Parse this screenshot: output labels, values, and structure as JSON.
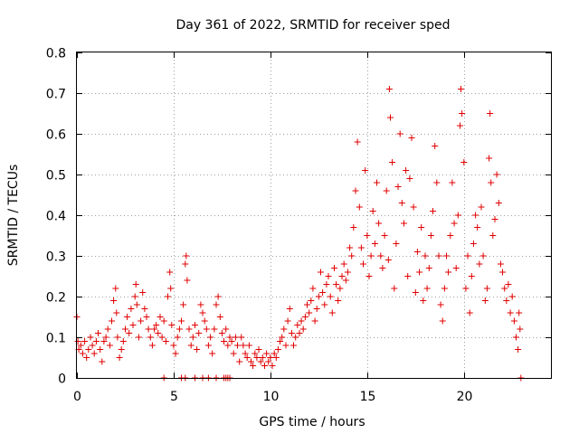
{
  "chart_data": {
    "type": "scatter",
    "title": "Day 361 of 2022, SRMTID for receiver sped",
    "xlabel": "GPS time / hours",
    "ylabel": "SRMTID / TECUs",
    "xlim": [
      0,
      24.5
    ],
    "ylim": [
      0,
      0.8
    ],
    "xticks": [
      0,
      5,
      10,
      15,
      20
    ],
    "yticks": [
      0,
      0.1,
      0.2,
      0.3,
      0.4,
      0.5,
      0.6,
      0.7,
      0.8
    ],
    "xtick_labels": [
      "0",
      "5",
      "10",
      "15",
      "20"
    ],
    "ytick_labels": [
      "0",
      "0.1",
      "0.2",
      "0.3",
      "0.4",
      "0.5",
      "0.6",
      "0.7",
      "0.8"
    ],
    "grid": true,
    "marker": "plus",
    "color": "#e00000",
    "series": [
      {
        "name": "SRMTID",
        "points": [
          [
            0.0,
            0.15
          ],
          [
            0.05,
            0.09
          ],
          [
            0.1,
            0.07
          ],
          [
            0.2,
            0.08
          ],
          [
            0.3,
            0.06
          ],
          [
            0.4,
            0.09
          ],
          [
            0.5,
            0.05
          ],
          [
            0.6,
            0.07
          ],
          [
            0.7,
            0.1
          ],
          [
            0.8,
            0.08
          ],
          [
            0.9,
            0.06
          ],
          [
            1.0,
            0.09
          ],
          [
            1.1,
            0.11
          ],
          [
            1.2,
            0.07
          ],
          [
            1.3,
            0.04
          ],
          [
            1.4,
            0.09
          ],
          [
            1.5,
            0.1
          ],
          [
            1.6,
            0.12
          ],
          [
            1.7,
            0.08
          ],
          [
            1.8,
            0.14
          ],
          [
            1.9,
            0.19
          ],
          [
            2.0,
            0.22
          ],
          [
            2.05,
            0.16
          ],
          [
            2.1,
            0.1
          ],
          [
            2.2,
            0.05
          ],
          [
            2.3,
            0.07
          ],
          [
            2.4,
            0.09
          ],
          [
            2.5,
            0.12
          ],
          [
            2.6,
            0.15
          ],
          [
            2.7,
            0.11
          ],
          [
            2.8,
            0.17
          ],
          [
            2.9,
            0.13
          ],
          [
            3.0,
            0.2
          ],
          [
            3.05,
            0.23
          ],
          [
            3.1,
            0.18
          ],
          [
            3.2,
            0.1
          ],
          [
            3.3,
            0.14
          ],
          [
            3.4,
            0.21
          ],
          [
            3.5,
            0.17
          ],
          [
            3.6,
            0.15
          ],
          [
            3.7,
            0.12
          ],
          [
            3.8,
            0.1
          ],
          [
            3.9,
            0.08
          ],
          [
            4.0,
            0.12
          ],
          [
            4.1,
            0.13
          ],
          [
            4.2,
            0.11
          ],
          [
            4.3,
            0.15
          ],
          [
            4.4,
            0.1
          ],
          [
            4.5,
            0.14
          ],
          [
            4.6,
            0.09
          ],
          [
            4.7,
            0.2
          ],
          [
            4.8,
            0.26
          ],
          [
            4.85,
            0.22
          ],
          [
            4.9,
            0.13
          ],
          [
            5.0,
            0.08
          ],
          [
            5.1,
            0.06
          ],
          [
            5.2,
            0.1
          ],
          [
            5.3,
            0.12
          ],
          [
            5.4,
            0.14
          ],
          [
            5.5,
            0.18
          ],
          [
            5.6,
            0.28
          ],
          [
            5.65,
            0.3
          ],
          [
            5.7,
            0.24
          ],
          [
            5.8,
            0.12
          ],
          [
            5.9,
            0.08
          ],
          [
            6.0,
            0.1
          ],
          [
            6.1,
            0.13
          ],
          [
            6.2,
            0.07
          ],
          [
            6.3,
            0.11
          ],
          [
            6.4,
            0.18
          ],
          [
            6.5,
            0.16
          ],
          [
            6.6,
            0.14
          ],
          [
            6.7,
            0.12
          ],
          [
            6.8,
            0.08
          ],
          [
            6.9,
            0.1
          ],
          [
            7.0,
            0.06
          ],
          [
            7.1,
            0.12
          ],
          [
            7.2,
            0.18
          ],
          [
            7.3,
            0.2
          ],
          [
            7.4,
            0.15
          ],
          [
            7.5,
            0.11
          ],
          [
            7.6,
            0.09
          ],
          [
            7.7,
            0.12
          ],
          [
            7.8,
            0.08
          ],
          [
            7.9,
            0.1
          ],
          [
            8.0,
            0.09
          ],
          [
            8.1,
            0.06
          ],
          [
            8.2,
            0.1
          ],
          [
            8.3,
            0.08
          ],
          [
            8.4,
            0.04
          ],
          [
            8.5,
            0.1
          ],
          [
            8.6,
            0.08
          ],
          [
            8.7,
            0.06
          ],
          [
            8.8,
            0.05
          ],
          [
            8.9,
            0.08
          ],
          [
            9.0,
            0.04
          ],
          [
            9.1,
            0.03
          ],
          [
            9.2,
            0.06
          ],
          [
            9.3,
            0.05
          ],
          [
            9.4,
            0.07
          ],
          [
            9.5,
            0.04
          ],
          [
            9.6,
            0.05
          ],
          [
            9.7,
            0.03
          ],
          [
            9.8,
            0.06
          ],
          [
            9.9,
            0.04
          ],
          [
            10.0,
            0.05
          ],
          [
            10.1,
            0.03
          ],
          [
            10.2,
            0.06
          ],
          [
            10.3,
            0.05
          ],
          [
            10.4,
            0.07
          ],
          [
            10.5,
            0.09
          ],
          [
            10.6,
            0.1
          ],
          [
            10.7,
            0.12
          ],
          [
            10.8,
            0.08
          ],
          [
            10.9,
            0.14
          ],
          [
            11.0,
            0.17
          ],
          [
            11.1,
            0.11
          ],
          [
            11.2,
            0.08
          ],
          [
            11.3,
            0.1
          ],
          [
            11.4,
            0.13
          ],
          [
            11.5,
            0.11
          ],
          [
            11.6,
            0.14
          ],
          [
            11.7,
            0.12
          ],
          [
            11.8,
            0.15
          ],
          [
            11.9,
            0.18
          ],
          [
            12.0,
            0.16
          ],
          [
            12.1,
            0.19
          ],
          [
            12.2,
            0.22
          ],
          [
            12.3,
            0.14
          ],
          [
            12.4,
            0.17
          ],
          [
            12.5,
            0.2
          ],
          [
            12.6,
            0.26
          ],
          [
            12.7,
            0.21
          ],
          [
            12.8,
            0.18
          ],
          [
            12.9,
            0.23
          ],
          [
            13.0,
            0.25
          ],
          [
            13.1,
            0.2
          ],
          [
            13.2,
            0.16
          ],
          [
            13.3,
            0.27
          ],
          [
            13.4,
            0.23
          ],
          [
            13.5,
            0.19
          ],
          [
            13.6,
            0.22
          ],
          [
            13.7,
            0.25
          ],
          [
            13.8,
            0.28
          ],
          [
            13.9,
            0.24
          ],
          [
            14.0,
            0.26
          ],
          [
            14.1,
            0.32
          ],
          [
            14.2,
            0.3
          ],
          [
            14.3,
            0.37
          ],
          [
            14.4,
            0.46
          ],
          [
            14.5,
            0.58
          ],
          [
            14.6,
            0.42
          ],
          [
            14.7,
            0.32
          ],
          [
            14.8,
            0.28
          ],
          [
            14.9,
            0.51
          ],
          [
            15.0,
            0.35
          ],
          [
            15.1,
            0.25
          ],
          [
            15.2,
            0.3
          ],
          [
            15.3,
            0.41
          ],
          [
            15.4,
            0.33
          ],
          [
            15.5,
            0.48
          ],
          [
            15.6,
            0.38
          ],
          [
            15.7,
            0.3
          ],
          [
            15.8,
            0.27
          ],
          [
            15.9,
            0.35
          ],
          [
            16.0,
            0.46
          ],
          [
            16.1,
            0.29
          ],
          [
            16.15,
            0.71
          ],
          [
            16.2,
            0.64
          ],
          [
            16.3,
            0.53
          ],
          [
            16.4,
            0.22
          ],
          [
            16.5,
            0.33
          ],
          [
            16.6,
            0.47
          ],
          [
            16.7,
            0.6
          ],
          [
            16.8,
            0.43
          ],
          [
            16.9,
            0.38
          ],
          [
            17.0,
            0.51
          ],
          [
            17.1,
            0.25
          ],
          [
            17.2,
            0.49
          ],
          [
            17.3,
            0.59
          ],
          [
            17.4,
            0.42
          ],
          [
            17.5,
            0.21
          ],
          [
            17.6,
            0.31
          ],
          [
            17.7,
            0.26
          ],
          [
            17.8,
            0.37
          ],
          [
            17.9,
            0.19
          ],
          [
            18.0,
            0.3
          ],
          [
            18.1,
            0.22
          ],
          [
            18.2,
            0.27
          ],
          [
            18.3,
            0.35
          ],
          [
            18.4,
            0.41
          ],
          [
            18.5,
            0.57
          ],
          [
            18.6,
            0.48
          ],
          [
            18.7,
            0.3
          ],
          [
            18.8,
            0.18
          ],
          [
            18.9,
            0.14
          ],
          [
            19.0,
            0.22
          ],
          [
            19.1,
            0.3
          ],
          [
            19.2,
            0.26
          ],
          [
            19.3,
            0.35
          ],
          [
            19.4,
            0.48
          ],
          [
            19.5,
            0.38
          ],
          [
            19.6,
            0.27
          ],
          [
            19.7,
            0.4
          ],
          [
            19.8,
            0.62
          ],
          [
            19.85,
            0.71
          ],
          [
            19.9,
            0.65
          ],
          [
            20.0,
            0.53
          ],
          [
            20.1,
            0.22
          ],
          [
            20.2,
            0.3
          ],
          [
            20.3,
            0.16
          ],
          [
            20.4,
            0.25
          ],
          [
            20.5,
            0.33
          ],
          [
            20.6,
            0.4
          ],
          [
            20.7,
            0.37
          ],
          [
            20.8,
            0.28
          ],
          [
            20.9,
            0.42
          ],
          [
            21.0,
            0.3
          ],
          [
            21.1,
            0.19
          ],
          [
            21.2,
            0.22
          ],
          [
            21.3,
            0.54
          ],
          [
            21.35,
            0.65
          ],
          [
            21.4,
            0.48
          ],
          [
            21.5,
            0.35
          ],
          [
            21.6,
            0.39
          ],
          [
            21.7,
            0.5
          ],
          [
            21.8,
            0.43
          ],
          [
            21.9,
            0.28
          ],
          [
            22.0,
            0.26
          ],
          [
            22.1,
            0.22
          ],
          [
            22.2,
            0.19
          ],
          [
            22.3,
            0.23
          ],
          [
            22.4,
            0.16
          ],
          [
            22.5,
            0.2
          ],
          [
            22.6,
            0.14
          ],
          [
            22.7,
            0.1
          ],
          [
            22.8,
            0.07
          ],
          [
            22.85,
            0.16
          ],
          [
            22.9,
            0.12
          ],
          [
            22.95,
            0.0
          ],
          [
            5.4,
            0.0
          ],
          [
            5.6,
            0.0
          ],
          [
            6.1,
            0.0
          ],
          [
            6.5,
            0.0
          ],
          [
            6.8,
            0.0
          ],
          [
            7.2,
            0.0
          ],
          [
            7.6,
            0.0
          ],
          [
            7.7,
            0.0
          ],
          [
            7.8,
            0.0
          ],
          [
            7.9,
            0.0
          ],
          [
            4.5,
            0.0
          ]
        ]
      }
    ]
  }
}
